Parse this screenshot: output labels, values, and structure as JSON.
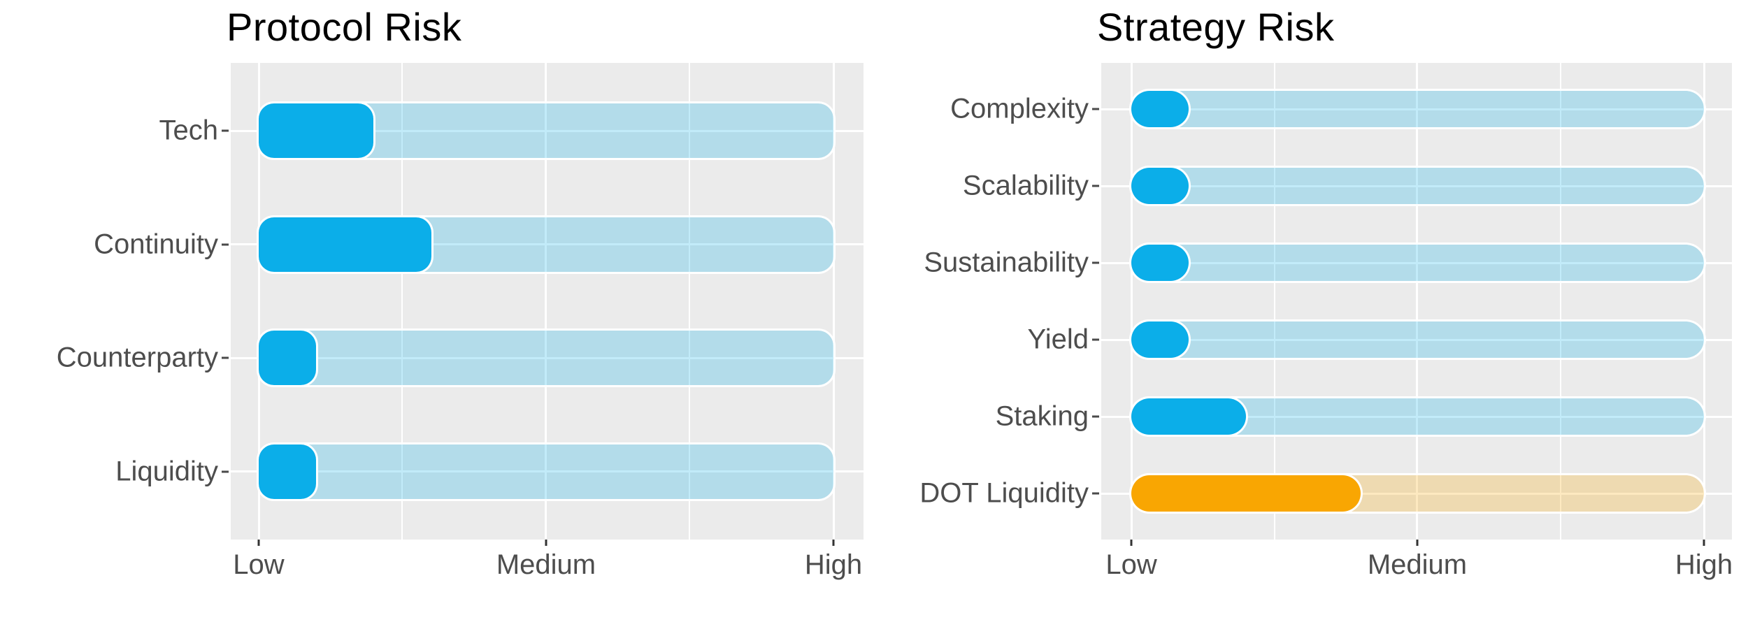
{
  "figure": {
    "background": "#FFFFFF",
    "description": "Two horizontal lollipop/progress bar risk charts"
  },
  "colors": {
    "accent_blue": "#0BAEE9",
    "accent_orange": "#F9A602",
    "panel_background": "#EBEBEB",
    "gridline": "#FFFFFF",
    "title_text": "#000000",
    "axis_text": "#4D4D4D",
    "tick_mark": "#333333"
  },
  "chart_data": [
    {
      "type": "bar",
      "orientation": "horizontal",
      "title": "Protocol Risk",
      "xlabel": "",
      "ylabel": "",
      "x_axis": {
        "tick_labels": [
          "Low",
          "Medium",
          "High"
        ],
        "tick_values": [
          0,
          5,
          10
        ],
        "range": [
          0,
          10
        ],
        "minor_grid": true
      },
      "categories": [
        "Tech",
        "Continuity",
        "Counterparty",
        "Liquidity"
      ],
      "values": [
        2,
        3,
        1,
        1
      ],
      "track_full_value": 10,
      "rows": [
        {
          "label": "Tech",
          "value": 2,
          "color": "#0BAEE9"
        },
        {
          "label": "Continuity",
          "value": 3,
          "color": "#0BAEE9"
        },
        {
          "label": "Counterparty",
          "value": 1,
          "color": "#0BAEE9"
        },
        {
          "label": "Liquidity",
          "value": 1,
          "color": "#0BAEE9"
        }
      ],
      "track_opacity": 0.25,
      "legend": "none",
      "grid": "white on gray panel"
    },
    {
      "type": "bar",
      "orientation": "horizontal",
      "title": "Strategy Risk",
      "xlabel": "",
      "ylabel": "",
      "x_axis": {
        "tick_labels": [
          "Low",
          "Medium",
          "High"
        ],
        "tick_values": [
          0,
          5,
          10
        ],
        "range": [
          0,
          10
        ],
        "minor_grid": true
      },
      "categories": [
        "Complexity",
        "Scalability",
        "Sustainability",
        "Yield",
        "Staking",
        "DOT Liquidity"
      ],
      "values": [
        1,
        1,
        1,
        1,
        2,
        4
      ],
      "track_full_value": 10,
      "rows": [
        {
          "label": "Complexity",
          "value": 1,
          "color": "#0BAEE9"
        },
        {
          "label": "Scalability",
          "value": 1,
          "color": "#0BAEE9"
        },
        {
          "label": "Sustainability",
          "value": 1,
          "color": "#0BAEE9"
        },
        {
          "label": "Yield",
          "value": 1,
          "color": "#0BAEE9"
        },
        {
          "label": "Staking",
          "value": 2,
          "color": "#0BAEE9"
        },
        {
          "label": "DOT Liquidity",
          "value": 4,
          "color": "#F9A602"
        }
      ],
      "track_opacity": 0.25,
      "legend": "none",
      "grid": "white on gray panel"
    }
  ]
}
